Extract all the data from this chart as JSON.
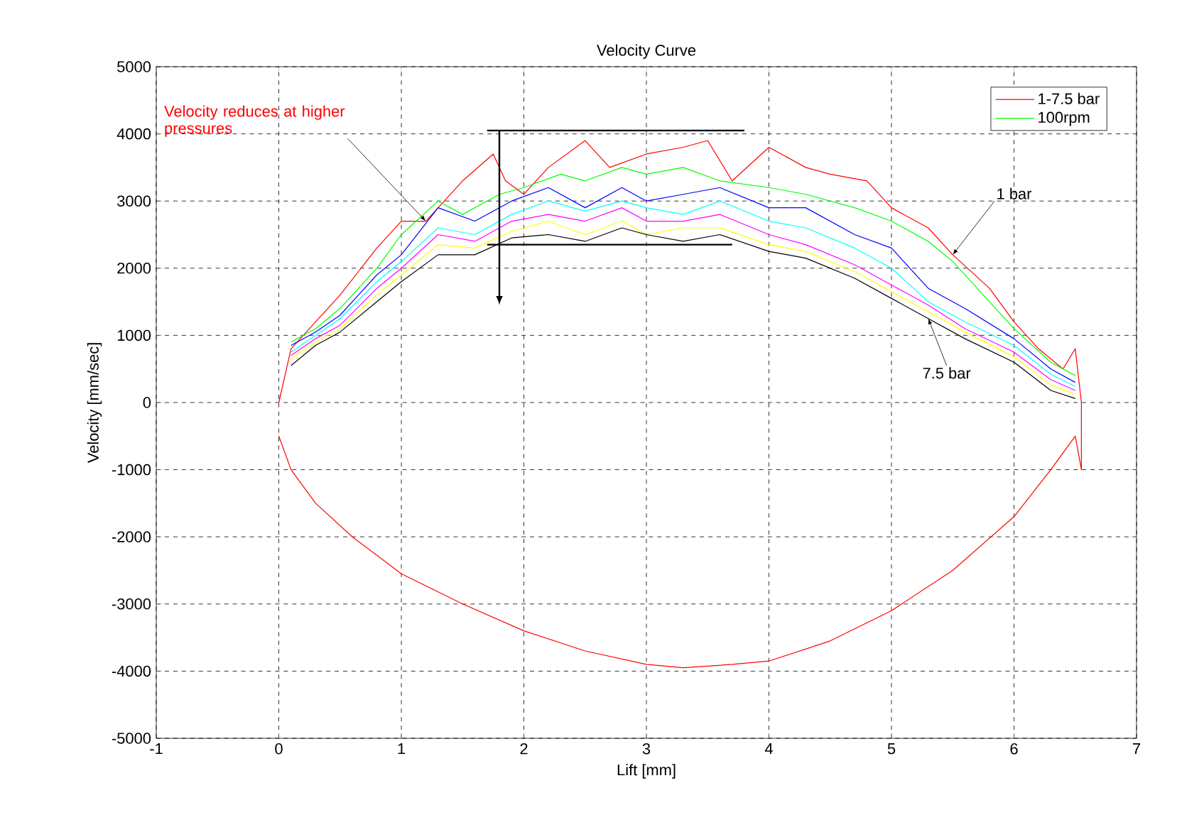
{
  "chart_data": {
    "type": "line",
    "title": "Velocity Curve",
    "xlabel": "Lift [mm]",
    "ylabel": "Velocity [mm/sec]",
    "xlim": [
      -1,
      7
    ],
    "xticks": [
      -1,
      0,
      1,
      2,
      3,
      4,
      5,
      6,
      7
    ],
    "ylim": [
      -5000,
      5000
    ],
    "yticks": [
      -5000,
      -4000,
      -3000,
      -2000,
      -1000,
      0,
      1000,
      2000,
      3000,
      4000,
      5000
    ],
    "grid": true,
    "legend": "top right",
    "line_style": "solid",
    "marker": "none",
    "series": [
      {
        "name": "1-7.5 bar",
        "color": "#ff0000",
        "x": [
          0,
          0.1,
          0.3,
          0.5,
          0.8,
          1.0,
          1.2,
          1.5,
          1.75,
          1.85,
          2.0,
          2.2,
          2.5,
          2.7,
          3.0,
          3.3,
          3.5,
          3.7,
          4.0,
          4.3,
          4.5,
          4.8,
          5.0,
          5.3,
          5.5,
          5.8,
          6.0,
          6.2,
          6.4,
          6.5,
          6.55,
          6.55,
          6.5,
          6.3,
          6.0,
          5.5,
          5.0,
          4.5,
          4.0,
          3.7,
          3.3,
          3.0,
          2.5,
          2.0,
          1.5,
          1.0,
          0.6,
          0.3,
          0.1,
          0
        ],
        "values": [
          0,
          800,
          1200,
          1600,
          2300,
          2700,
          2700,
          3300,
          3700,
          3300,
          3100,
          3500,
          3900,
          3500,
          3700,
          3800,
          3900,
          3300,
          3800,
          3500,
          3400,
          3300,
          2900,
          2600,
          2200,
          1700,
          1200,
          800,
          500,
          800,
          0,
          -1000,
          -500,
          -1000,
          -1700,
          -2500,
          -3100,
          -3550,
          -3850,
          -3900,
          -3950,
          -3900,
          -3700,
          -3400,
          -3000,
          -2550,
          -2000,
          -1500,
          -1000,
          -500
        ]
      },
      {
        "name": "100rpm",
        "color": "#00ff00",
        "x": [
          0.1,
          0.3,
          0.5,
          0.8,
          1.0,
          1.3,
          1.5,
          1.8,
          2.0,
          2.3,
          2.5,
          2.8,
          3.0,
          3.3,
          3.6,
          4.0,
          4.3,
          4.7,
          5.0,
          5.3,
          5.5,
          5.8,
          6.0,
          6.3,
          6.5
        ],
        "values": [
          900,
          1100,
          1400,
          2000,
          2500,
          3000,
          2800,
          3100,
          3200,
          3400,
          3300,
          3500,
          3400,
          3500,
          3300,
          3200,
          3100,
          2900,
          2700,
          2400,
          2100,
          1500,
          1100,
          600,
          400
        ]
      },
      {
        "color": "#0000ff",
        "x": [
          0.1,
          0.3,
          0.5,
          0.8,
          1.0,
          1.3,
          1.6,
          1.9,
          2.2,
          2.5,
          2.8,
          3.0,
          3.3,
          3.6,
          4.0,
          4.3,
          4.7,
          5.0,
          5.3,
          5.6,
          6.0,
          6.3,
          6.5
        ],
        "values": [
          850,
          1050,
          1300,
          1900,
          2200,
          2900,
          2700,
          3000,
          3200,
          2900,
          3200,
          3000,
          3100,
          3200,
          2900,
          2900,
          2500,
          2300,
          1700,
          1400,
          950,
          500,
          300
        ]
      },
      {
        "color": "#00ffff",
        "x": [
          0.1,
          0.3,
          0.5,
          0.8,
          1.0,
          1.3,
          1.6,
          1.9,
          2.2,
          2.5,
          2.8,
          3.0,
          3.3,
          3.6,
          4.0,
          4.3,
          4.7,
          5.0,
          5.3,
          5.6,
          6.0,
          6.3,
          6.5
        ],
        "values": [
          750,
          1000,
          1250,
          1800,
          2100,
          2600,
          2500,
          2800,
          3000,
          2850,
          3000,
          2900,
          2800,
          3000,
          2700,
          2600,
          2300,
          2000,
          1500,
          1200,
          850,
          420,
          240
        ]
      },
      {
        "color": "#ff00ff",
        "x": [
          0.1,
          0.3,
          0.5,
          0.8,
          1.0,
          1.3,
          1.6,
          1.9,
          2.2,
          2.5,
          2.8,
          3.0,
          3.3,
          3.6,
          4.0,
          4.3,
          4.7,
          5.0,
          5.3,
          5.6,
          6.0,
          6.3,
          6.5
        ],
        "values": [
          700,
          950,
          1150,
          1700,
          2000,
          2500,
          2400,
          2700,
          2800,
          2700,
          2900,
          2700,
          2700,
          2800,
          2500,
          2350,
          2050,
          1750,
          1450,
          1100,
          750,
          340,
          180
        ]
      },
      {
        "color": "#ffff00",
        "x": [
          0.1,
          0.3,
          0.5,
          0.8,
          1.0,
          1.3,
          1.6,
          1.9,
          2.2,
          2.5,
          2.8,
          3.0,
          3.3,
          3.6,
          4.0,
          4.3,
          4.7,
          5.0,
          5.3,
          5.6,
          6.0,
          6.3,
          6.5
        ],
        "values": [
          650,
          900,
          1100,
          1600,
          1900,
          2350,
          2300,
          2550,
          2700,
          2500,
          2700,
          2500,
          2600,
          2600,
          2350,
          2250,
          1950,
          1650,
          1350,
          1050,
          680,
          260,
          120
        ]
      },
      {
        "color": "#000000",
        "x": [
          0.1,
          0.3,
          0.5,
          0.8,
          1.0,
          1.3,
          1.6,
          1.9,
          2.2,
          2.5,
          2.8,
          3.0,
          3.3,
          3.6,
          4.0,
          4.3,
          4.7,
          5.0,
          5.3,
          5.6,
          6.0,
          6.3,
          6.5
        ],
        "values": [
          550,
          850,
          1050,
          1500,
          1800,
          2200,
          2200,
          2450,
          2500,
          2400,
          2600,
          2500,
          2400,
          2500,
          2250,
          2150,
          1850,
          1550,
          1250,
          950,
          600,
          180,
          60
        ]
      }
    ],
    "ref_lines": [
      {
        "axis": "y",
        "value": 4050,
        "color": "#000000"
      },
      {
        "axis": "y",
        "value": 2350,
        "color": "#000000"
      }
    ],
    "annotations": [
      {
        "text": "Velocity reduces at higher pressures",
        "x": 1.2,
        "y": 2700
      },
      {
        "text": "1 bar",
        "x": 5.5,
        "y": 2200
      },
      {
        "text": "7.5 bar",
        "x": 5.3,
        "y": 1250
      }
    ]
  }
}
